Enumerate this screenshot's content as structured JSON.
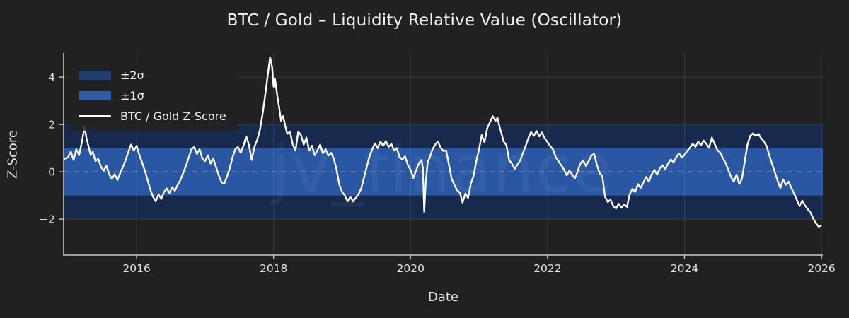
{
  "watermark": "jv_finance",
  "colors": {
    "figure_bg": "#212121",
    "band_2sigma": "#17294d",
    "band_1sigma": "#2a57a4",
    "line": "#ffffff",
    "grid": "rgba(255,255,255,0.10)",
    "zero_line": "#9a9a9a",
    "spine": "#c8c8c8",
    "tick_text": "#e0e0e0",
    "watermark_text": "rgba(255,255,255,0.05)"
  },
  "chart_data": {
    "type": "line",
    "title": "BTC / Gold – Liquidity Relative Value (Oscillator)",
    "xlabel": "Date",
    "ylabel": "Z-Score",
    "xlim": [
      2014.935,
      2026.02
    ],
    "ylim": [
      -3.52,
      5.02
    ],
    "grid": true,
    "x_ticks": [
      {
        "v": 2016,
        "label": "2016"
      },
      {
        "v": 2018,
        "label": "2018"
      },
      {
        "v": 2020,
        "label": "2020"
      },
      {
        "v": 2022,
        "label": "2022"
      },
      {
        "v": 2024,
        "label": "2024"
      },
      {
        "v": 2026,
        "label": "2026"
      }
    ],
    "y_ticks": [
      {
        "v": 4,
        "label": "4"
      },
      {
        "v": 2,
        "label": "2"
      },
      {
        "v": 0,
        "label": "0"
      },
      {
        "v": -2,
        "label": "−2"
      }
    ],
    "bands": [
      {
        "name": "plus-minus-2-sigma",
        "from": -2,
        "to": 2
      },
      {
        "name": "plus-minus-1-sigma",
        "from": -1,
        "to": 1
      }
    ],
    "zero_line": {
      "y": 0,
      "style": "dashed"
    },
    "legend": {
      "position": "upper-left",
      "items": [
        {
          "label": "±2σ",
          "swatch": "band",
          "color": "#1f3d6d"
        },
        {
          "label": "±1σ",
          "swatch": "band",
          "color": "#2d5cab"
        },
        {
          "label": "BTC / Gold Z-Score",
          "swatch": "line",
          "color": "#ffffff"
        }
      ]
    },
    "series": [
      {
        "name": "BTC / Gold Z-Score",
        "points": [
          [
            2014.95,
            0.55
          ],
          [
            2015.0,
            0.62
          ],
          [
            2015.04,
            0.85
          ],
          [
            2015.08,
            0.5
          ],
          [
            2015.12,
            0.95
          ],
          [
            2015.16,
            0.7
          ],
          [
            2015.2,
            1.25
          ],
          [
            2015.24,
            1.9
          ],
          [
            2015.27,
            1.4
          ],
          [
            2015.3,
            1.05
          ],
          [
            2015.33,
            0.7
          ],
          [
            2015.36,
            0.85
          ],
          [
            2015.4,
            0.45
          ],
          [
            2015.44,
            0.55
          ],
          [
            2015.48,
            0.2
          ],
          [
            2015.52,
            0.05
          ],
          [
            2015.56,
            0.25
          ],
          [
            2015.6,
            -0.1
          ],
          [
            2015.64,
            -0.3
          ],
          [
            2015.68,
            -0.1
          ],
          [
            2015.72,
            -0.35
          ],
          [
            2015.76,
            -0.05
          ],
          [
            2015.8,
            0.2
          ],
          [
            2015.84,
            0.5
          ],
          [
            2015.88,
            0.85
          ],
          [
            2015.92,
            1.15
          ],
          [
            2015.96,
            0.9
          ],
          [
            2016.0,
            1.1
          ],
          [
            2016.04,
            0.7
          ],
          [
            2016.08,
            0.4
          ],
          [
            2016.12,
            0.05
          ],
          [
            2016.16,
            -0.35
          ],
          [
            2016.2,
            -0.75
          ],
          [
            2016.24,
            -1.05
          ],
          [
            2016.28,
            -1.25
          ],
          [
            2016.32,
            -0.95
          ],
          [
            2016.36,
            -1.15
          ],
          [
            2016.4,
            -0.85
          ],
          [
            2016.44,
            -0.7
          ],
          [
            2016.48,
            -0.9
          ],
          [
            2016.52,
            -0.65
          ],
          [
            2016.56,
            -0.8
          ],
          [
            2016.6,
            -0.55
          ],
          [
            2016.64,
            -0.35
          ],
          [
            2016.68,
            -0.05
          ],
          [
            2016.72,
            0.25
          ],
          [
            2016.76,
            0.6
          ],
          [
            2016.8,
            0.95
          ],
          [
            2016.84,
            1.05
          ],
          [
            2016.88,
            0.75
          ],
          [
            2016.92,
            0.95
          ],
          [
            2016.96,
            0.55
          ],
          [
            2017.0,
            0.45
          ],
          [
            2017.04,
            0.7
          ],
          [
            2017.08,
            0.35
          ],
          [
            2017.12,
            0.55
          ],
          [
            2017.16,
            0.2
          ],
          [
            2017.2,
            -0.15
          ],
          [
            2017.24,
            -0.45
          ],
          [
            2017.28,
            -0.5
          ],
          [
            2017.32,
            -0.2
          ],
          [
            2017.36,
            0.15
          ],
          [
            2017.4,
            0.6
          ],
          [
            2017.44,
            0.95
          ],
          [
            2017.48,
            1.05
          ],
          [
            2017.52,
            0.8
          ],
          [
            2017.56,
            1.1
          ],
          [
            2017.6,
            1.5
          ],
          [
            2017.64,
            1.15
          ],
          [
            2017.68,
            0.5
          ],
          [
            2017.72,
            1.05
          ],
          [
            2017.76,
            1.35
          ],
          [
            2017.8,
            1.75
          ],
          [
            2017.84,
            2.45
          ],
          [
            2017.88,
            3.3
          ],
          [
            2017.92,
            4.2
          ],
          [
            2017.95,
            4.84
          ],
          [
            2017.98,
            4.4
          ],
          [
            2018.0,
            3.6
          ],
          [
            2018.02,
            3.95
          ],
          [
            2018.05,
            3.3
          ],
          [
            2018.08,
            2.75
          ],
          [
            2018.11,
            2.15
          ],
          [
            2018.14,
            2.35
          ],
          [
            2018.17,
            1.95
          ],
          [
            2018.2,
            1.6
          ],
          [
            2018.24,
            1.7
          ],
          [
            2018.28,
            1.15
          ],
          [
            2018.32,
            0.9
          ],
          [
            2018.36,
            1.7
          ],
          [
            2018.4,
            1.55
          ],
          [
            2018.44,
            1.15
          ],
          [
            2018.48,
            1.45
          ],
          [
            2018.52,
            0.9
          ],
          [
            2018.56,
            1.1
          ],
          [
            2018.6,
            0.7
          ],
          [
            2018.64,
            0.9
          ],
          [
            2018.68,
            1.15
          ],
          [
            2018.72,
            0.78
          ],
          [
            2018.76,
            0.95
          ],
          [
            2018.8,
            0.68
          ],
          [
            2018.84,
            0.8
          ],
          [
            2018.88,
            0.55
          ],
          [
            2018.92,
            0.1
          ],
          [
            2018.96,
            -0.55
          ],
          [
            2019.0,
            -0.85
          ],
          [
            2019.04,
            -1.0
          ],
          [
            2019.08,
            -1.25
          ],
          [
            2019.12,
            -1.05
          ],
          [
            2019.16,
            -1.25
          ],
          [
            2019.2,
            -1.1
          ],
          [
            2019.24,
            -0.95
          ],
          [
            2019.28,
            -0.7
          ],
          [
            2019.32,
            -0.25
          ],
          [
            2019.36,
            0.2
          ],
          [
            2019.4,
            0.65
          ],
          [
            2019.44,
            0.95
          ],
          [
            2019.48,
            1.2
          ],
          [
            2019.52,
            1.0
          ],
          [
            2019.56,
            1.28
          ],
          [
            2019.6,
            1.1
          ],
          [
            2019.64,
            1.3
          ],
          [
            2019.68,
            1.05
          ],
          [
            2019.72,
            1.18
          ],
          [
            2019.76,
            0.9
          ],
          [
            2019.8,
            1.0
          ],
          [
            2019.84,
            0.62
          ],
          [
            2019.88,
            0.52
          ],
          [
            2019.92,
            0.65
          ],
          [
            2019.96,
            0.3
          ],
          [
            2020.0,
            0.08
          ],
          [
            2020.04,
            -0.26
          ],
          [
            2020.08,
            0.05
          ],
          [
            2020.12,
            0.35
          ],
          [
            2020.16,
            0.5
          ],
          [
            2020.18,
            0.15
          ],
          [
            2020.2,
            -1.7
          ],
          [
            2020.22,
            -0.5
          ],
          [
            2020.25,
            0.42
          ],
          [
            2020.28,
            0.6
          ],
          [
            2020.32,
            0.95
          ],
          [
            2020.36,
            1.15
          ],
          [
            2020.4,
            1.28
          ],
          [
            2020.44,
            1.02
          ],
          [
            2020.48,
            0.88
          ],
          [
            2020.52,
            0.9
          ],
          [
            2020.56,
            0.3
          ],
          [
            2020.6,
            -0.3
          ],
          [
            2020.64,
            -0.55
          ],
          [
            2020.68,
            -0.78
          ],
          [
            2020.72,
            -0.88
          ],
          [
            2020.76,
            -1.3
          ],
          [
            2020.8,
            -0.92
          ],
          [
            2020.84,
            -1.1
          ],
          [
            2020.88,
            -0.5
          ],
          [
            2020.92,
            -0.18
          ],
          [
            2020.96,
            0.45
          ],
          [
            2021.0,
            0.95
          ],
          [
            2021.04,
            1.55
          ],
          [
            2021.08,
            1.25
          ],
          [
            2021.12,
            1.85
          ],
          [
            2021.16,
            2.1
          ],
          [
            2021.2,
            2.35
          ],
          [
            2021.24,
            2.15
          ],
          [
            2021.27,
            2.28
          ],
          [
            2021.3,
            1.9
          ],
          [
            2021.33,
            1.6
          ],
          [
            2021.36,
            1.28
          ],
          [
            2021.4,
            1.12
          ],
          [
            2021.44,
            0.48
          ],
          [
            2021.48,
            0.36
          ],
          [
            2021.52,
            0.12
          ],
          [
            2021.56,
            0.3
          ],
          [
            2021.6,
            0.48
          ],
          [
            2021.64,
            0.78
          ],
          [
            2021.68,
            1.08
          ],
          [
            2021.72,
            1.42
          ],
          [
            2021.76,
            1.68
          ],
          [
            2021.8,
            1.52
          ],
          [
            2021.84,
            1.72
          ],
          [
            2021.88,
            1.5
          ],
          [
            2021.92,
            1.66
          ],
          [
            2021.96,
            1.42
          ],
          [
            2022.0,
            1.25
          ],
          [
            2022.04,
            1.08
          ],
          [
            2022.08,
            0.95
          ],
          [
            2022.12,
            0.62
          ],
          [
            2022.16,
            0.45
          ],
          [
            2022.2,
            0.28
          ],
          [
            2022.24,
            0.1
          ],
          [
            2022.28,
            -0.15
          ],
          [
            2022.32,
            0.05
          ],
          [
            2022.36,
            -0.12
          ],
          [
            2022.4,
            -0.28
          ],
          [
            2022.44,
            0.02
          ],
          [
            2022.48,
            0.35
          ],
          [
            2022.52,
            0.48
          ],
          [
            2022.56,
            0.25
          ],
          [
            2022.6,
            0.45
          ],
          [
            2022.64,
            0.68
          ],
          [
            2022.68,
            0.76
          ],
          [
            2022.72,
            0.3
          ],
          [
            2022.76,
            -0.05
          ],
          [
            2022.8,
            -0.18
          ],
          [
            2022.84,
            -1.05
          ],
          [
            2022.88,
            -1.28
          ],
          [
            2022.92,
            -1.18
          ],
          [
            2022.96,
            -1.45
          ],
          [
            2023.0,
            -1.55
          ],
          [
            2023.04,
            -1.35
          ],
          [
            2023.08,
            -1.52
          ],
          [
            2023.12,
            -1.38
          ],
          [
            2023.16,
            -1.48
          ],
          [
            2023.2,
            -0.95
          ],
          [
            2023.24,
            -0.72
          ],
          [
            2023.28,
            -0.85
          ],
          [
            2023.32,
            -0.52
          ],
          [
            2023.36,
            -0.68
          ],
          [
            2023.4,
            -0.45
          ],
          [
            2023.44,
            -0.22
          ],
          [
            2023.48,
            -0.42
          ],
          [
            2023.52,
            -0.12
          ],
          [
            2023.56,
            0.08
          ],
          [
            2023.6,
            -0.12
          ],
          [
            2023.64,
            0.15
          ],
          [
            2023.68,
            0.28
          ],
          [
            2023.72,
            0.1
          ],
          [
            2023.76,
            0.35
          ],
          [
            2023.8,
            0.52
          ],
          [
            2023.84,
            0.4
          ],
          [
            2023.88,
            0.62
          ],
          [
            2023.92,
            0.78
          ],
          [
            2023.96,
            0.6
          ],
          [
            2024.0,
            0.72
          ],
          [
            2024.04,
            0.88
          ],
          [
            2024.08,
            1.02
          ],
          [
            2024.12,
            1.18
          ],
          [
            2024.16,
            1.05
          ],
          [
            2024.2,
            1.28
          ],
          [
            2024.24,
            1.12
          ],
          [
            2024.28,
            1.32
          ],
          [
            2024.32,
            1.18
          ],
          [
            2024.36,
            1.02
          ],
          [
            2024.4,
            1.45
          ],
          [
            2024.44,
            1.18
          ],
          [
            2024.48,
            0.92
          ],
          [
            2024.52,
            0.82
          ],
          [
            2024.56,
            0.58
          ],
          [
            2024.6,
            0.38
          ],
          [
            2024.64,
            0.08
          ],
          [
            2024.68,
            -0.22
          ],
          [
            2024.72,
            -0.42
          ],
          [
            2024.76,
            -0.12
          ],
          [
            2024.8,
            -0.52
          ],
          [
            2024.84,
            -0.28
          ],
          [
            2024.88,
            0.45
          ],
          [
            2024.92,
            1.15
          ],
          [
            2024.96,
            1.52
          ],
          [
            2025.0,
            1.63
          ],
          [
            2025.04,
            1.52
          ],
          [
            2025.08,
            1.6
          ],
          [
            2025.12,
            1.42
          ],
          [
            2025.16,
            1.28
          ],
          [
            2025.2,
            1.08
          ],
          [
            2025.24,
            0.68
          ],
          [
            2025.28,
            0.32
          ],
          [
            2025.32,
            -0.02
          ],
          [
            2025.36,
            -0.38
          ],
          [
            2025.4,
            -0.68
          ],
          [
            2025.44,
            -0.32
          ],
          [
            2025.48,
            -0.55
          ],
          [
            2025.52,
            -0.42
          ],
          [
            2025.56,
            -0.68
          ],
          [
            2025.6,
            -0.92
          ],
          [
            2025.64,
            -1.18
          ],
          [
            2025.68,
            -1.45
          ],
          [
            2025.72,
            -1.22
          ],
          [
            2025.76,
            -1.42
          ],
          [
            2025.8,
            -1.58
          ],
          [
            2025.84,
            -1.72
          ],
          [
            2025.88,
            -1.98
          ],
          [
            2025.92,
            -2.18
          ],
          [
            2025.96,
            -2.32
          ],
          [
            2025.99,
            -2.28
          ]
        ]
      }
    ]
  }
}
